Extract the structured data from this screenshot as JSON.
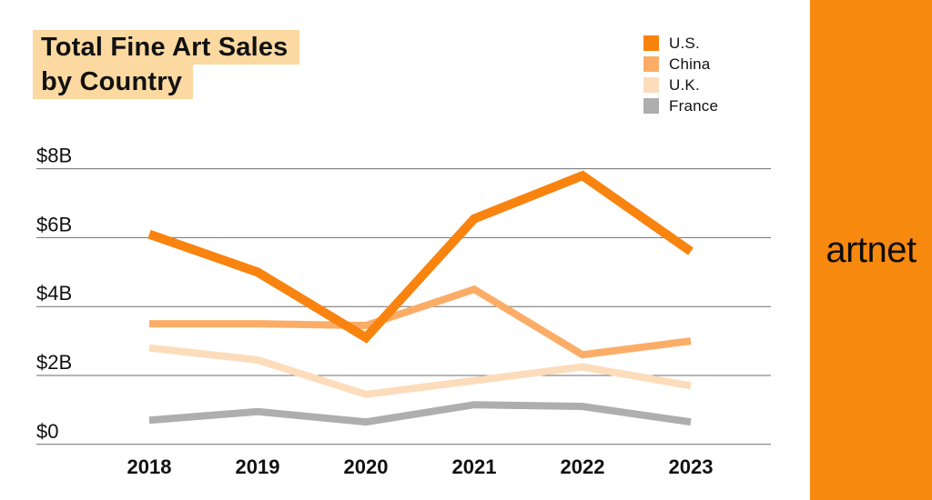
{
  "header": {
    "title_line1": "Total Fine Art Sales",
    "title_line2": "by Country",
    "highlight_color": "#FBD9A1"
  },
  "brand": {
    "name": "artnet",
    "banner_color": "#F8890F",
    "logo_color": "#0d0d0d"
  },
  "chart_data": {
    "type": "line",
    "title": "Total Fine Art Sales by Country",
    "x": [
      2018,
      2019,
      2020,
      2021,
      2022,
      2023
    ],
    "series": [
      {
        "name": "U.S.",
        "color": "#F9830F",
        "stroke_width": 10,
        "values": [
          6.1,
          5.0,
          3.1,
          6.55,
          7.8,
          5.6
        ]
      },
      {
        "name": "China",
        "color": "#FBAD67",
        "stroke_width": 8,
        "values": [
          3.5,
          3.5,
          3.45,
          4.5,
          2.6,
          3.0
        ]
      },
      {
        "name": "U.K.",
        "color": "#FCDCBB",
        "stroke_width": 8,
        "values": [
          2.8,
          2.45,
          1.45,
          1.85,
          2.25,
          1.7
        ]
      },
      {
        "name": "France",
        "color": "#AEAEAF",
        "stroke_width": 8,
        "values": [
          0.7,
          0.95,
          0.65,
          1.15,
          1.1,
          0.65
        ]
      }
    ],
    "yticks": [
      {
        "value": 8,
        "label": "$8B"
      },
      {
        "value": 6,
        "label": "$6B"
      },
      {
        "value": 4,
        "label": "$4B"
      },
      {
        "value": 2,
        "label": "$2B"
      },
      {
        "value": 0,
        "label": "$0"
      }
    ],
    "ylim": [
      0,
      8
    ],
    "xlabel": "",
    "ylabel": "",
    "grid": "horizontal",
    "gridline_color": "#6E6E6E",
    "legend_position": "top-right"
  }
}
